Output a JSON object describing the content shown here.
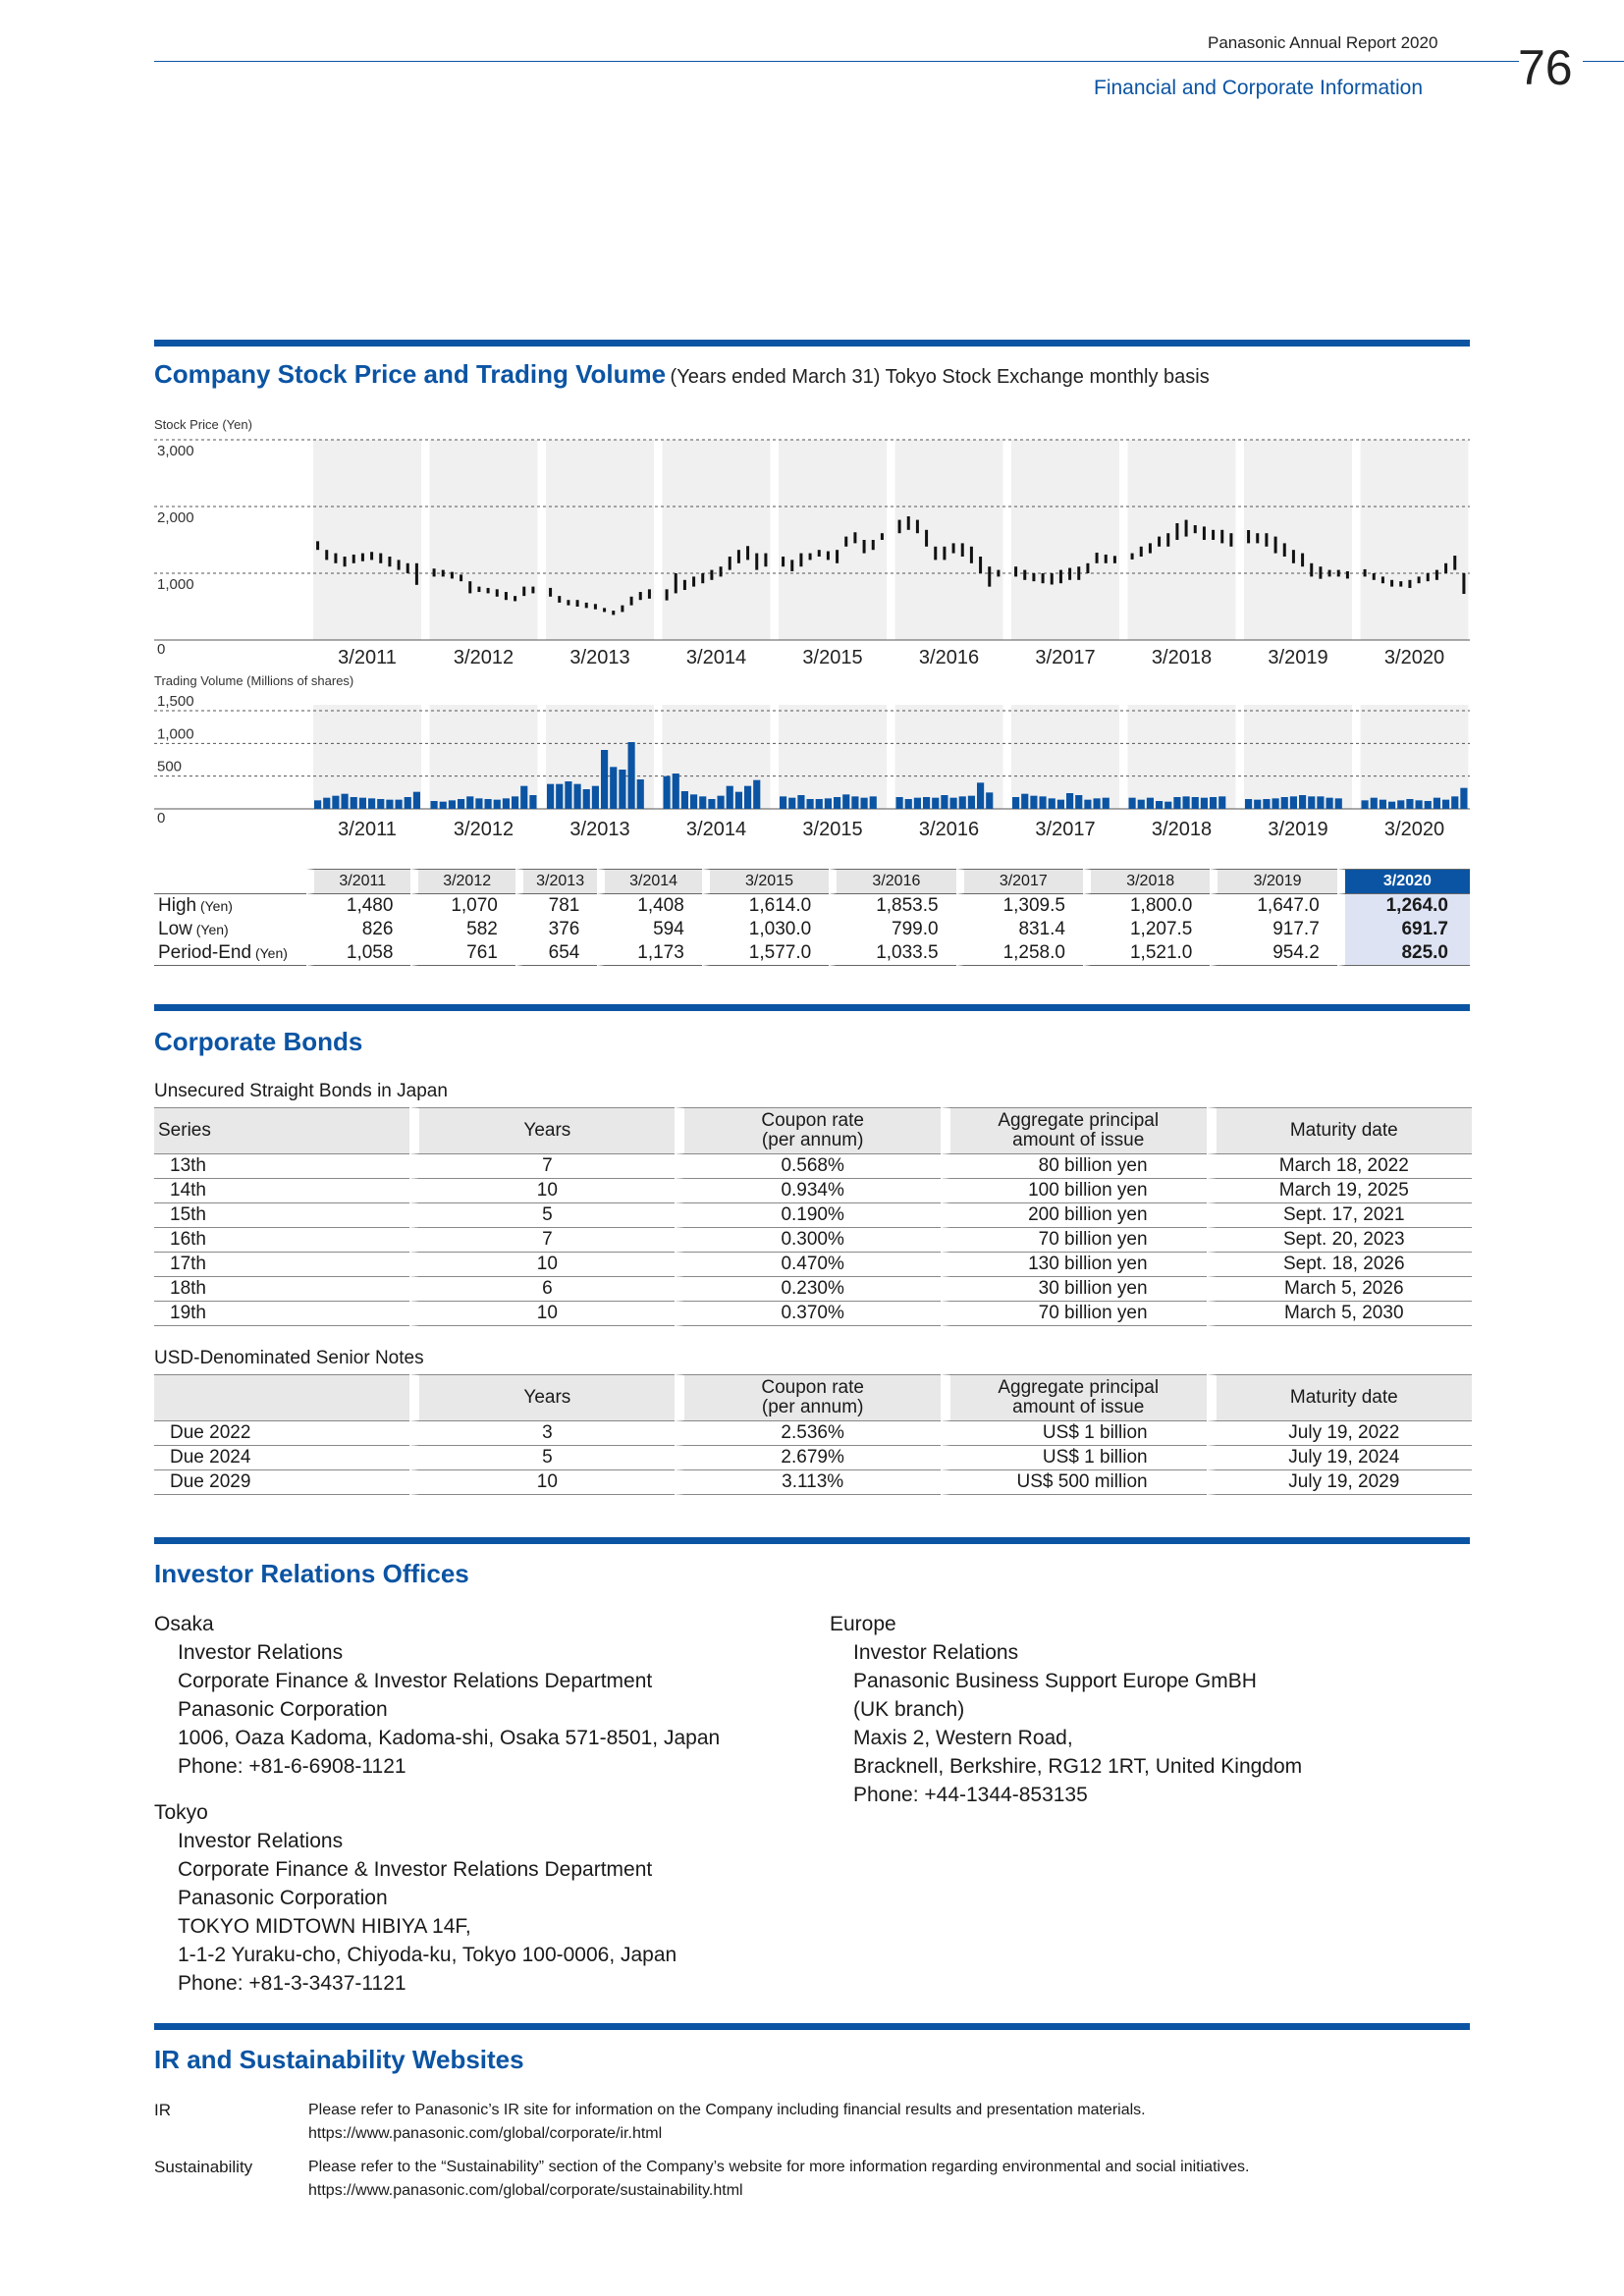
{
  "header": {
    "report_title": "Panasonic Annual Report 2020",
    "section": "Financial and Corporate Information",
    "page_number": "76"
  },
  "stock_section": {
    "title": "Company Stock Price and Trading Volume",
    "subtitle": "(Years ended March 31) Tokyo Stock Exchange monthly basis",
    "price_axis_label": "Stock Price (Yen)",
    "volume_axis_label": "Trading Volume (Millions of shares)",
    "price_ticks": [
      "3,000",
      "2,000",
      "1,000",
      "0"
    ],
    "volume_ticks": [
      "1,500",
      "1,000",
      "500",
      "0"
    ],
    "table": {
      "years": [
        "3/2011",
        "3/2012",
        "3/2013",
        "3/2014",
        "3/2015",
        "3/2016",
        "3/2017",
        "3/2018",
        "3/2019",
        "3/2020"
      ],
      "rows": [
        {
          "label": "High",
          "unit": "(Yen)",
          "values": [
            "1,480",
            "1,070",
            "781",
            "1,408",
            "1,614.0",
            "1,853.5",
            "1,309.5",
            "1,800.0",
            "1,647.0",
            "1,264.0"
          ]
        },
        {
          "label": "Low",
          "unit": "(Yen)",
          "values": [
            "826",
            "582",
            "376",
            "594",
            "1,030.0",
            "799.0",
            "831.4",
            "1,207.5",
            "917.7",
            "691.7"
          ]
        },
        {
          "label": "Period-End",
          "unit": "(Yen)",
          "values": [
            "1,058",
            "761",
            "654",
            "1,173",
            "1,577.0",
            "1,033.5",
            "1,258.0",
            "1,521.0",
            "954.2",
            "825.0"
          ]
        }
      ]
    }
  },
  "chart_data": [
    {
      "type": "candlestick",
      "ylabel": "Stock Price (Yen)",
      "ylim": [
        0,
        3000
      ],
      "yticks": [
        0,
        1000,
        2000,
        3000
      ],
      "grid": "dashed horizontal",
      "categories": [
        "3/2011",
        "3/2012",
        "3/2013",
        "3/2014",
        "3/2015",
        "3/2016",
        "3/2017",
        "3/2018",
        "3/2019",
        "3/2020"
      ],
      "monthly_ranges_per_year": [
        [
          [
            1350,
            1480
          ],
          [
            1200,
            1350
          ],
          [
            1150,
            1300
          ],
          [
            1100,
            1250
          ],
          [
            1150,
            1280
          ],
          [
            1180,
            1300
          ],
          [
            1200,
            1320
          ],
          [
            1150,
            1300
          ],
          [
            1100,
            1250
          ],
          [
            1050,
            1200
          ],
          [
            1000,
            1150
          ],
          [
            826,
            1150
          ]
        ],
        [
          [
            950,
            1070
          ],
          [
            950,
            1050
          ],
          [
            920,
            1020
          ],
          [
            880,
            980
          ],
          [
            700,
            880
          ],
          [
            720,
            800
          ],
          [
            700,
            780
          ],
          [
            650,
            760
          ],
          [
            600,
            720
          ],
          [
            582,
            660
          ],
          [
            660,
            800
          ],
          [
            700,
            800
          ]
        ],
        [
          [
            650,
            781
          ],
          [
            560,
            660
          ],
          [
            520,
            600
          ],
          [
            500,
            600
          ],
          [
            480,
            560
          ],
          [
            460,
            540
          ],
          [
            420,
            480
          ],
          [
            376,
            440
          ],
          [
            420,
            520
          ],
          [
            520,
            650
          ],
          [
            600,
            720
          ],
          [
            620,
            760
          ]
        ],
        [
          [
            594,
            760
          ],
          [
            700,
            1000
          ],
          [
            750,
            900
          ],
          [
            800,
            950
          ],
          [
            850,
            1000
          ],
          [
            900,
            1050
          ],
          [
            950,
            1100
          ],
          [
            1050,
            1250
          ],
          [
            1150,
            1350
          ],
          [
            1200,
            1408
          ],
          [
            1050,
            1300
          ],
          [
            1100,
            1300
          ]
        ],
        [
          [
            1100,
            1250
          ],
          [
            1030,
            1200
          ],
          [
            1100,
            1300
          ],
          [
            1200,
            1300
          ],
          [
            1250,
            1350
          ],
          [
            1200,
            1330
          ],
          [
            1150,
            1350
          ],
          [
            1400,
            1550
          ],
          [
            1450,
            1614
          ],
          [
            1300,
            1500
          ],
          [
            1350,
            1500
          ],
          [
            1500,
            1600
          ]
        ],
        [
          [
            1600,
            1800
          ],
          [
            1650,
            1853
          ],
          [
            1600,
            1800
          ],
          [
            1400,
            1650
          ],
          [
            1200,
            1400
          ],
          [
            1200,
            1400
          ],
          [
            1300,
            1450
          ],
          [
            1250,
            1450
          ],
          [
            1150,
            1400
          ],
          [
            1000,
            1250
          ],
          [
            799,
            1100
          ],
          [
            950,
            1050
          ]
        ],
        [
          [
            950,
            1100
          ],
          [
            900,
            1050
          ],
          [
            880,
            1000
          ],
          [
            850,
            1000
          ],
          [
            831,
            1000
          ],
          [
            850,
            1050
          ],
          [
            900,
            1080
          ],
          [
            900,
            1100
          ],
          [
            1000,
            1150
          ],
          [
            1150,
            1309
          ],
          [
            1150,
            1280
          ],
          [
            1150,
            1260
          ]
        ],
        [
          [
            1207,
            1300
          ],
          [
            1250,
            1400
          ],
          [
            1300,
            1450
          ],
          [
            1400,
            1550
          ],
          [
            1400,
            1600
          ],
          [
            1500,
            1750
          ],
          [
            1550,
            1800
          ],
          [
            1600,
            1720
          ],
          [
            1500,
            1700
          ],
          [
            1500,
            1650
          ],
          [
            1450,
            1650
          ],
          [
            1400,
            1600
          ]
        ],
        [
          [
            1450,
            1647
          ],
          [
            1450,
            1600
          ],
          [
            1400,
            1600
          ],
          [
            1300,
            1550
          ],
          [
            1250,
            1450
          ],
          [
            1150,
            1350
          ],
          [
            1100,
            1300
          ],
          [
            950,
            1150
          ],
          [
            917,
            1100
          ],
          [
            950,
            1050
          ],
          [
            950,
            1050
          ],
          [
            920,
            1030
          ]
        ],
        [
          [
            950,
            1060
          ],
          [
            900,
            1000
          ],
          [
            850,
            950
          ],
          [
            800,
            900
          ],
          [
            800,
            880
          ],
          [
            780,
            900
          ],
          [
            850,
            950
          ],
          [
            880,
            1000
          ],
          [
            900,
            1050
          ],
          [
            1000,
            1150
          ],
          [
            1050,
            1264
          ],
          [
            691,
            1000
          ]
        ]
      ]
    },
    {
      "type": "bar",
      "ylabel": "Trading Volume (Millions of shares)",
      "ylim": [
        0,
        1500
      ],
      "yticks": [
        0,
        500,
        1000,
        1500
      ],
      "grid": "dashed horizontal",
      "categories": [
        "3/2011",
        "3/2012",
        "3/2013",
        "3/2014",
        "3/2015",
        "3/2016",
        "3/2017",
        "3/2018",
        "3/2019",
        "3/2020"
      ],
      "monthly_values_per_year": [
        [
          130,
          170,
          200,
          230,
          180,
          170,
          160,
          150,
          140,
          140,
          180,
          260
        ],
        [
          120,
          110,
          130,
          150,
          190,
          160,
          150,
          140,
          160,
          190,
          350,
          210
        ],
        [
          380,
          380,
          420,
          380,
          300,
          350,
          900,
          640,
          600,
          1020,
          450,
          0
        ],
        [
          500,
          540,
          270,
          220,
          190,
          150,
          200,
          350,
          260,
          350,
          440,
          0
        ],
        [
          190,
          170,
          210,
          150,
          150,
          160,
          180,
          220,
          190,
          170,
          190,
          0
        ],
        [
          180,
          150,
          170,
          180,
          170,
          210,
          170,
          190,
          200,
          400,
          250,
          0
        ],
        [
          180,
          230,
          200,
          190,
          160,
          140,
          240,
          210,
          140,
          160,
          170,
          0
        ],
        [
          170,
          140,
          170,
          120,
          110,
          180,
          190,
          180,
          170,
          180,
          190,
          0
        ],
        [
          150,
          140,
          150,
          160,
          180,
          190,
          210,
          190,
          190,
          170,
          160,
          0
        ],
        [
          130,
          170,
          140,
          110,
          130,
          150,
          130,
          120,
          170,
          140,
          190,
          320
        ]
      ]
    }
  ],
  "bonds": {
    "title": "Corporate Bonds",
    "jp_caption": "Unsecured Straight Bonds in Japan",
    "headers": {
      "series": "Series",
      "years": "Years",
      "coupon_l1": "Coupon rate",
      "coupon_l2": "(per annum)",
      "amount_l1": "Aggregate principal",
      "amount_l2": "amount of issue",
      "maturity": "Maturity date"
    },
    "jp_rows": [
      [
        "13th",
        "7",
        "0.568%",
        "80 billion yen",
        "March 18, 2022"
      ],
      [
        "14th",
        "10",
        "0.934%",
        "100 billion yen",
        "March 19, 2025"
      ],
      [
        "15th",
        "5",
        "0.190%",
        "200 billion yen",
        "Sept. 17, 2021"
      ],
      [
        "16th",
        "7",
        "0.300%",
        "70 billion yen",
        "Sept. 20, 2023"
      ],
      [
        "17th",
        "10",
        "0.470%",
        "130 billion yen",
        "Sept. 18, 2026"
      ],
      [
        "18th",
        "6",
        "0.230%",
        "30 billion yen",
        "March 5, 2026"
      ],
      [
        "19th",
        "10",
        "0.370%",
        "70 billion yen",
        "March 5, 2030"
      ]
    ],
    "usd_caption": "USD-Denominated Senior Notes",
    "usd_rows": [
      [
        "Due 2022",
        "3",
        "2.536%",
        "US$ 1 billion",
        "July 19, 2022"
      ],
      [
        "Due 2024",
        "5",
        "2.679%",
        "US$ 1 billion",
        "July 19, 2024"
      ],
      [
        "Due 2029",
        "10",
        "3.113%",
        "US$ 500 million",
        "July 19, 2029"
      ]
    ]
  },
  "ir_offices": {
    "title": "Investor Relations Offices",
    "osaka": {
      "name": "Osaka",
      "lines": [
        "Investor Relations",
        "Corporate Finance & Investor Relations Department",
        "Panasonic Corporation",
        "1006, Oaza Kadoma, Kadoma-shi, Osaka 571-8501, Japan",
        "Phone: +81-6-6908-1121"
      ]
    },
    "tokyo": {
      "name": "Tokyo",
      "lines": [
        "Investor Relations",
        "Corporate Finance & Investor Relations Department",
        "Panasonic Corporation",
        "TOKYO MIDTOWN HIBIYA 14F,",
        "1-1-2 Yuraku-cho, Chiyoda-ku, Tokyo 100-0006, Japan",
        "Phone: +81-3-3437-1121"
      ]
    },
    "europe": {
      "name": "Europe",
      "lines": [
        "Investor Relations",
        "Panasonic Business Support Europe GmBH",
        "(UK branch)",
        "Maxis 2, Western Road,",
        "Bracknell, Berkshire, RG12 1RT, United Kingdom",
        "Phone: +44-1344-853135"
      ]
    }
  },
  "websites": {
    "title": "IR and Sustainability Websites",
    "ir": {
      "label": "IR",
      "text": "Please refer to Panasonic’s IR site for information on the Company including financial results and presentation materials.",
      "url": "https://www.panasonic.com/global/corporate/ir.html"
    },
    "sustainability": {
      "label": "Sustainability",
      "text": "Please refer to the “Sustainability” section of the Company’s website for more information regarding environmental and social initiatives.",
      "url": "https://www.panasonic.com/global/corporate/sustainability.html"
    }
  },
  "colors": {
    "brand_blue": "#0b54a3",
    "year_band": "#f0f0f0",
    "highlight": "#dde3f3"
  }
}
